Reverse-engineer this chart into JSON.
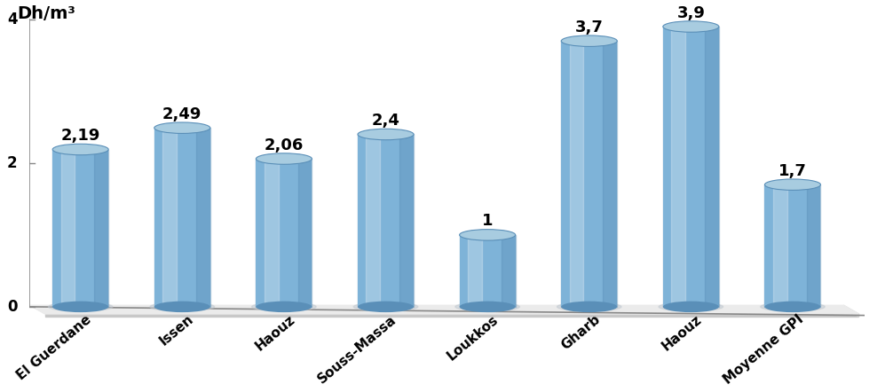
{
  "categories": [
    "El Guerdane",
    "Issen",
    "Haouz",
    "Souss-Massa",
    "Loukkos",
    "Gharb",
    "Haouz",
    "Moyenne GPI"
  ],
  "values": [
    2.19,
    2.49,
    2.06,
    2.4,
    1.0,
    3.7,
    3.9,
    1.7
  ],
  "labels": [
    "2,19",
    "2,49",
    "2,06",
    "2,4",
    "1",
    "3,7",
    "3,9",
    "1,7"
  ],
  "bar_color_main": "#7eb3d8",
  "bar_color_dark": "#5a8fb8",
  "bar_color_top": "#a8cce0",
  "bar_color_shadow": "#d0e4f0",
  "ylabel": "Dh/m³",
  "ylim": [
    0,
    4
  ],
  "yticks": [
    0,
    2,
    4
  ],
  "background_color": "#ffffff",
  "label_fontsize": 13,
  "axis_fontsize": 13,
  "tick_fontsize": 12,
  "cat_fontsize": 11
}
